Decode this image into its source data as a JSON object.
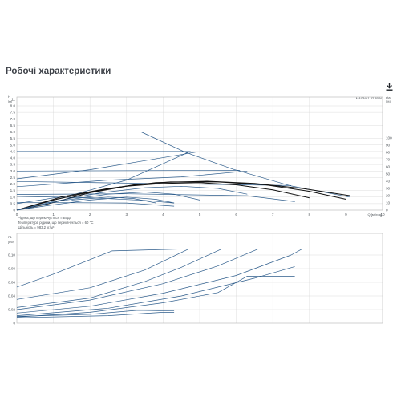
{
  "page": {
    "title": "Робочі характеристики",
    "download_icon": "download-icon"
  },
  "colors": {
    "curve": "#2e5d8c",
    "curve_bold": "#111111",
    "grid": "#d4d4d4",
    "frame": "#b5b5b5"
  },
  "notes": [
    "Рідина, що перекачується = Вода",
    "Температура рідини, що перекачується = 60 °C",
    "Щільність = 983.2 кг/м³"
  ],
  "chart_data": [
    {
      "type": "line",
      "legend_label": "MAGNA1 32-80 N",
      "xlabel": "Q [м³/год]",
      "ylabel": "H",
      "ylabel_unit": "[м]",
      "ylim": [
        0,
        11
      ],
      "xlim": [
        0,
        10
      ],
      "y_ticks": [
        "0",
        "0.5",
        "1.0",
        "1.5",
        "2.0",
        "2.5",
        "3.0",
        "3.5",
        "4.0",
        "4.5",
        "5.0",
        "5.5",
        "6.0",
        "6.5",
        "7.0",
        "7.5",
        "8.0",
        "11"
      ],
      "x_ticks": [
        "0",
        "1",
        "2",
        "3",
        "4",
        "5",
        "6",
        "7",
        "8",
        "9",
        "10"
      ],
      "secondary_axis": {
        "label": "eta",
        "unit": "[%]",
        "ticks": [
          "0",
          "10",
          "20",
          "30",
          "40",
          "50",
          "60",
          "70",
          "80",
          "90",
          "100"
        ],
        "ylim": [
          0,
          100
        ]
      },
      "grid": true,
      "series": [
        {
          "role": "pump curve",
          "values": [
            [
              0,
              6.0
            ],
            [
              3.4,
              6.0
            ],
            [
              4.6,
              4.45
            ],
            [
              5.9,
              3.15
            ],
            [
              7.5,
              1.85
            ],
            [
              9.1,
              1.0
            ]
          ]
        },
        {
          "role": "pump curve",
          "values": [
            [
              0,
              4.5
            ],
            [
              4.75,
              4.5
            ]
          ]
        },
        {
          "role": "pump curve",
          "values": [
            [
              0,
              3.0
            ],
            [
              6.1,
              3.05
            ]
          ]
        },
        {
          "role": "pump curve",
          "values": [
            [
              0,
              2.2
            ],
            [
              7.5,
              1.88
            ]
          ]
        },
        {
          "role": "pump curve",
          "values": [
            [
              0,
              1.2
            ],
            [
              3.0,
              1.25
            ],
            [
              6.3,
              1.1
            ],
            [
              7.6,
              0.65
            ]
          ]
        },
        {
          "role": "pump curve",
          "values": [
            [
              0,
              0.6
            ],
            [
              3.0,
              0.55
            ],
            [
              4.3,
              0.3
            ]
          ]
        },
        {
          "role": "system curve",
          "values": [
            [
              0,
              0.5
            ],
            [
              1.5,
              1.15
            ],
            [
              3.0,
              2.3
            ],
            [
              4.7,
              4.45
            ]
          ]
        },
        {
          "role": "system curve",
          "values": [
            [
              0,
              2.4
            ],
            [
              2.0,
              3.1
            ],
            [
              3.5,
              3.8
            ],
            [
              4.9,
              4.45
            ]
          ]
        },
        {
          "role": "system curve",
          "values": [
            [
              0,
              1.8
            ],
            [
              2.5,
              2.3
            ],
            [
              4.5,
              2.55
            ],
            [
              6.3,
              3.0
            ]
          ]
        },
        {
          "role": "system curve",
          "values": [
            [
              0,
              1.05
            ],
            [
              2.0,
              0.95
            ],
            [
              3.5,
              0.75
            ],
            [
              4.3,
              0.55
            ]
          ]
        },
        {
          "role": "efficiency",
          "values": [
            [
              0,
              0
            ],
            [
              0.8,
              8
            ],
            [
              2.0,
              24
            ],
            [
              3.0,
              33
            ],
            [
              4.0,
              37
            ],
            [
              5.0,
              38
            ],
            [
              6.0,
              35
            ],
            [
              7.0,
              28
            ],
            [
              8.0,
              17
            ]
          ]
        },
        {
          "role": "efficiency",
          "values": [
            [
              0,
              0
            ],
            [
              1.0,
              14
            ],
            [
              2.0,
              25
            ],
            [
              3.2,
              35
            ],
            [
              4.2,
              39
            ],
            [
              5.5,
              39
            ],
            [
              6.8,
              35
            ],
            [
              8.0,
              26
            ],
            [
              9.0,
              15
            ]
          ]
        },
        {
          "role": "efficiency",
          "values": [
            [
              0,
              0
            ],
            [
              1.2,
              18
            ],
            [
              2.5,
              30
            ],
            [
              3.8,
              38
            ],
            [
              5.2,
              40
            ],
            [
              6.5,
              37
            ],
            [
              7.8,
              30
            ],
            [
              9.1,
              20
            ]
          ]
        },
        {
          "role": "efficiency",
          "values": [
            [
              0,
              0
            ],
            [
              1.0,
              12
            ],
            [
              2.3,
              24
            ],
            [
              3.5,
              31
            ],
            [
              4.5,
              33
            ],
            [
              5.5,
              30
            ],
            [
              6.3,
              22
            ]
          ]
        },
        {
          "role": "efficiency",
          "values": [
            [
              0,
              0
            ],
            [
              1.2,
              13
            ],
            [
              2.5,
              22
            ],
            [
              3.5,
              25
            ],
            [
              4.3,
              22
            ],
            [
              5.0,
              14
            ]
          ]
        },
        {
          "role": "efficiency",
          "values": [
            [
              0,
              0
            ],
            [
              0.8,
              6
            ],
            [
              2.0,
              14
            ],
            [
              3.0,
              18
            ],
            [
              3.8,
              15
            ],
            [
              4.3,
              10
            ]
          ]
        },
        {
          "role": "efficiency",
          "values": [
            [
              1.5,
              14
            ],
            [
              2.5,
              18
            ],
            [
              3.2,
              16
            ],
            [
              3.8,
              10
            ]
          ]
        }
      ]
    },
    {
      "type": "line",
      "ylabel": "P1",
      "ylabel_unit": "[kW]",
      "ylim": [
        0,
        0.12
      ],
      "xlim": [
        0,
        10
      ],
      "y_ticks": [
        "0",
        "0.02",
        "0.04",
        "0.06",
        "0.08",
        "0.10"
      ],
      "grid": true,
      "series": [
        {
          "role": "power",
          "values": [
            [
              0,
              0.053
            ],
            [
              1.0,
              0.072
            ],
            [
              2.6,
              0.106
            ],
            [
              4.6,
              0.109
            ],
            [
              9.1,
              0.109
            ]
          ]
        },
        {
          "role": "power",
          "values": [
            [
              0,
              0.035
            ],
            [
              2.0,
              0.052
            ],
            [
              3.5,
              0.078
            ],
            [
              4.7,
              0.109
            ]
          ]
        },
        {
          "role": "power",
          "values": [
            [
              0,
              0.023
            ],
            [
              2.0,
              0.037
            ],
            [
              3.5,
              0.061
            ],
            [
              4.5,
              0.082
            ],
            [
              5.6,
              0.109
            ]
          ]
        },
        {
          "role": "power",
          "values": [
            [
              0,
              0.02
            ],
            [
              2.0,
              0.034
            ],
            [
              4.0,
              0.058
            ],
            [
              5.5,
              0.084
            ],
            [
              6.6,
              0.109
            ]
          ]
        },
        {
          "role": "power",
          "values": [
            [
              0,
              0.015
            ],
            [
              2.0,
              0.025
            ],
            [
              4.0,
              0.044
            ],
            [
              6.0,
              0.07
            ],
            [
              7.5,
              0.1
            ],
            [
              7.8,
              0.109
            ]
          ]
        },
        {
          "role": "power",
          "values": [
            [
              0,
              0.011
            ],
            [
              2.5,
              0.022
            ],
            [
              4.5,
              0.04
            ],
            [
              6.5,
              0.066
            ],
            [
              7.6,
              0.083
            ]
          ]
        },
        {
          "role": "power",
          "values": [
            [
              0,
              0.009
            ],
            [
              2.0,
              0.016
            ],
            [
              4.0,
              0.03
            ],
            [
              5.5,
              0.045
            ],
            [
              6.3,
              0.069
            ],
            [
              7.6,
              0.069
            ]
          ]
        },
        {
          "role": "power",
          "values": [
            [
              0,
              0.01
            ],
            [
              2.0,
              0.013
            ],
            [
              3.3,
              0.019
            ],
            [
              4.3,
              0.018
            ]
          ]
        },
        {
          "role": "power",
          "values": [
            [
              0,
              0.008
            ],
            [
              2.5,
              0.011
            ],
            [
              4.0,
              0.016
            ],
            [
              4.3,
              0.016
            ]
          ]
        }
      ]
    }
  ]
}
